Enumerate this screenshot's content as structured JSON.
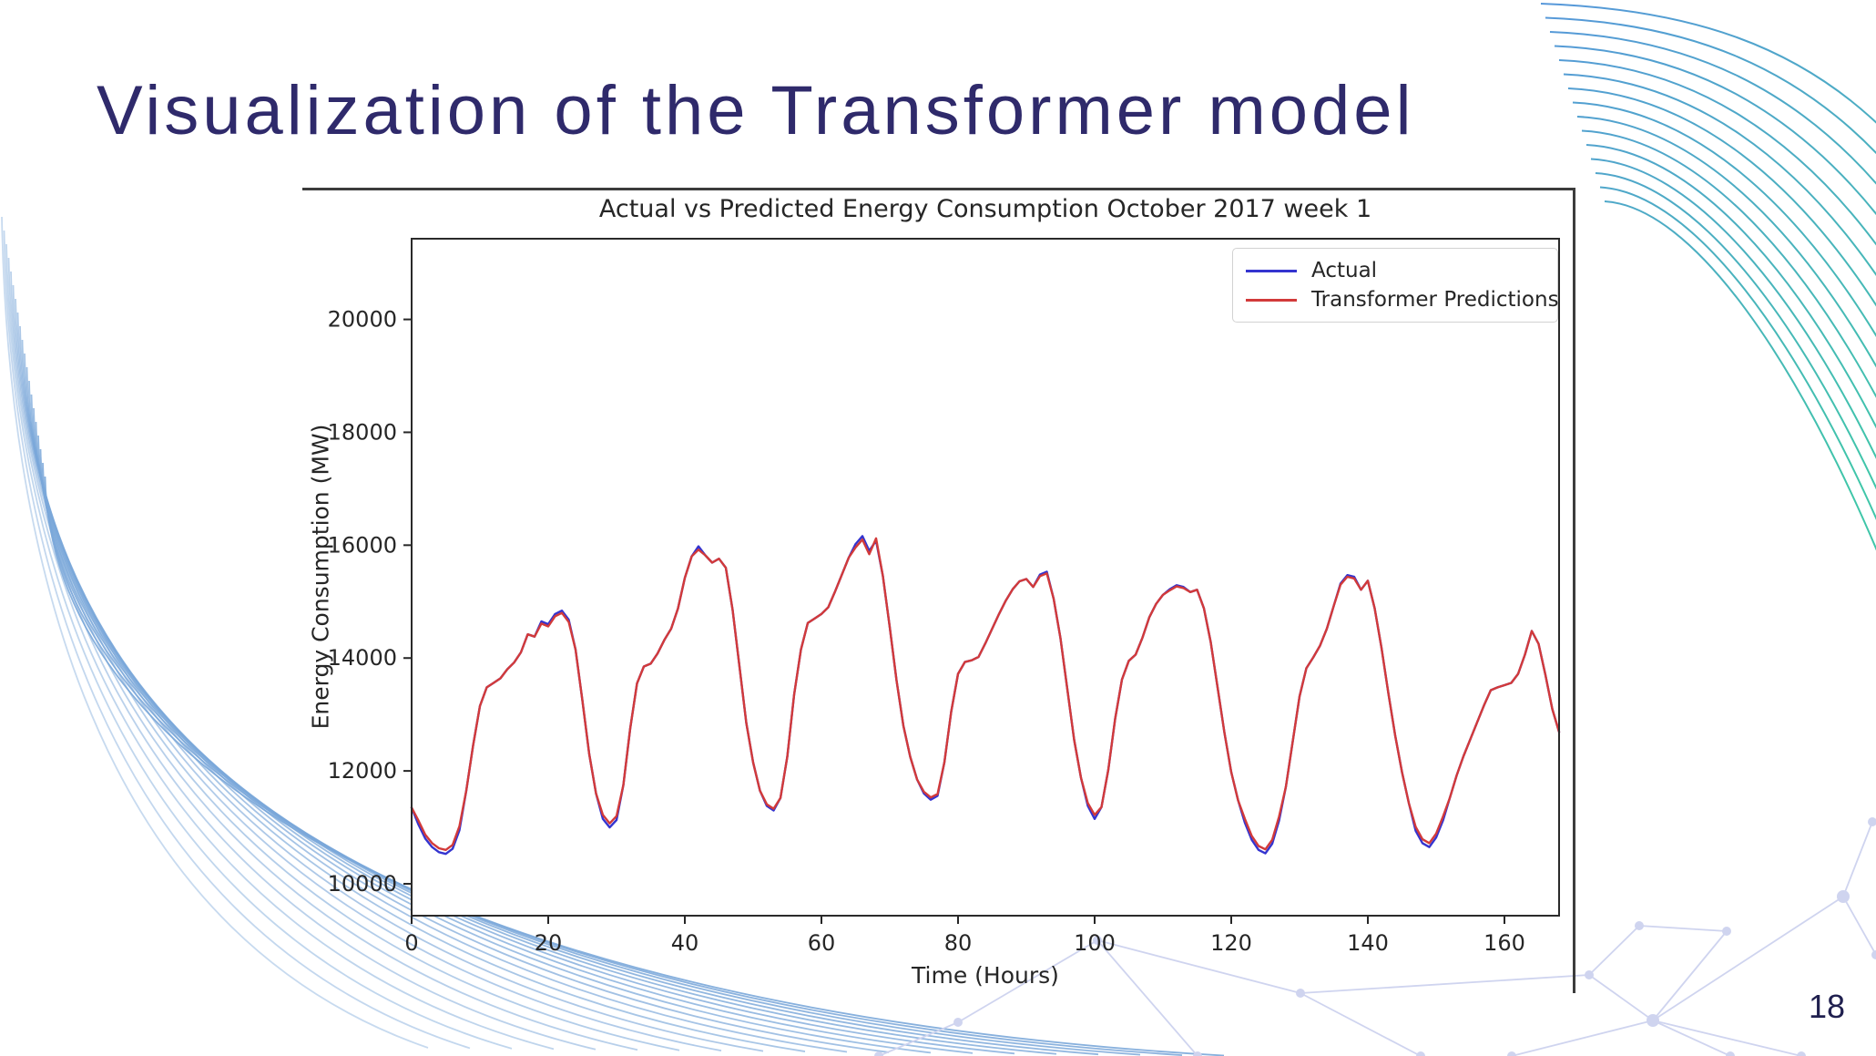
{
  "slide": {
    "title": "Visualization of the Transformer model",
    "page_number": "18"
  },
  "colors": {
    "title": "#2f2a6b",
    "page_number": "#20204f",
    "frame": "#3c3c3c",
    "chart_text": "#262626",
    "actual": "#3434cf",
    "predictions": "#d23a3a",
    "wave_blue": "#4e92d8",
    "wave_teal": "#35c3a4",
    "wave_corner_blue": "#7aa7d9",
    "network_lavender": "#cfd4ef"
  },
  "chart_data": {
    "type": "line",
    "title": "Actual vs Predicted Energy Consumption October 2017 week 1",
    "xlabel": "Time (Hours)",
    "ylabel": "Energy Consumption (MW)",
    "xlim": [
      0,
      168
    ],
    "ylim": [
      9435,
      21430
    ],
    "xticks": [
      0,
      20,
      40,
      60,
      80,
      100,
      120,
      140,
      160
    ],
    "yticks": [
      10000,
      12000,
      14000,
      16000,
      18000,
      20000
    ],
    "grid": false,
    "legend_position": "upper right",
    "x_start": 0,
    "x_step": 1,
    "series": [
      {
        "name": "Actual",
        "color": "#3434cf",
        "values": [
          11350,
          11050,
          10800,
          10650,
          10560,
          10530,
          10620,
          10950,
          11650,
          12450,
          13150,
          13480,
          13560,
          13640,
          13800,
          13920,
          14100,
          14420,
          14380,
          14650,
          14600,
          14780,
          14840,
          14680,
          14150,
          13250,
          12300,
          11600,
          11150,
          11000,
          11130,
          11750,
          12750,
          13550,
          13850,
          13900,
          14080,
          14320,
          14520,
          14880,
          15420,
          15800,
          15980,
          15820,
          15690,
          15760,
          15600,
          14850,
          13850,
          12850,
          12150,
          11650,
          11380,
          11300,
          11520,
          12250,
          13350,
          14150,
          14620,
          14700,
          14780,
          14900,
          15180,
          15480,
          15780,
          16020,
          16160,
          15900,
          16080,
          15450,
          14550,
          13600,
          12800,
          12250,
          11850,
          11600,
          11490,
          11560,
          12150,
          13050,
          13720,
          13930,
          13960,
          14020,
          14260,
          14520,
          14780,
          15020,
          15220,
          15360,
          15400,
          15260,
          15480,
          15530,
          15050,
          14350,
          13450,
          12550,
          11880,
          11380,
          11150,
          11360,
          12020,
          12920,
          13620,
          13950,
          14060,
          14360,
          14720,
          14960,
          15120,
          15220,
          15290,
          15260,
          15170,
          15210,
          14880,
          14280,
          13480,
          12680,
          11980,
          11480,
          11080,
          10780,
          10600,
          10540,
          10710,
          11120,
          11720,
          12520,
          13320,
          13820,
          14010,
          14220,
          14520,
          14920,
          15320,
          15470,
          15440,
          15210,
          15370,
          14880,
          14180,
          13380,
          12630,
          11980,
          11430,
          10940,
          10720,
          10650,
          10820,
          11120,
          11520,
          11920,
          12260,
          12560,
          12860,
          13160,
          13430,
          13480,
          13520,
          13560,
          13720,
          14060,
          14480,
          14250,
          13700,
          13100,
          12690
        ]
      },
      {
        "name": "Transformer Predictions",
        "color": "#d23a3a",
        "values": [
          11350,
          11120,
          10870,
          10720,
          10630,
          10600,
          10690,
          11020,
          11650,
          12450,
          13150,
          13480,
          13560,
          13640,
          13800,
          13920,
          14100,
          14420,
          14380,
          14610,
          14560,
          14740,
          14800,
          14640,
          14150,
          13250,
          12300,
          11600,
          11220,
          11070,
          11200,
          11750,
          12750,
          13550,
          13850,
          13900,
          14080,
          14320,
          14520,
          14880,
          15420,
          15800,
          15920,
          15820,
          15690,
          15760,
          15600,
          14850,
          13850,
          12850,
          12150,
          11650,
          11410,
          11330,
          11520,
          12250,
          13350,
          14150,
          14620,
          14700,
          14780,
          14900,
          15180,
          15480,
          15780,
          15960,
          16100,
          15840,
          16120,
          15450,
          14550,
          13600,
          12800,
          12250,
          11850,
          11630,
          11530,
          11590,
          12150,
          13050,
          13720,
          13930,
          13960,
          14020,
          14260,
          14520,
          14780,
          15020,
          15220,
          15360,
          15400,
          15260,
          15450,
          15500,
          15050,
          14350,
          13450,
          12550,
          11880,
          11430,
          11220,
          11360,
          12020,
          12920,
          13620,
          13950,
          14060,
          14360,
          14720,
          14960,
          15120,
          15200,
          15270,
          15240,
          15170,
          15210,
          14880,
          14280,
          13480,
          12680,
          11980,
          11480,
          11150,
          10850,
          10670,
          10610,
          10780,
          11190,
          11720,
          12520,
          13320,
          13820,
          14010,
          14220,
          14520,
          14920,
          15300,
          15440,
          15410,
          15210,
          15370,
          14880,
          14180,
          13380,
          12630,
          11980,
          11430,
          11010,
          10790,
          10720,
          10890,
          11190,
          11520,
          11920,
          12260,
          12560,
          12860,
          13160,
          13430,
          13480,
          13520,
          13560,
          13720,
          14060,
          14480,
          14250,
          13700,
          13100,
          12690
        ]
      }
    ]
  }
}
